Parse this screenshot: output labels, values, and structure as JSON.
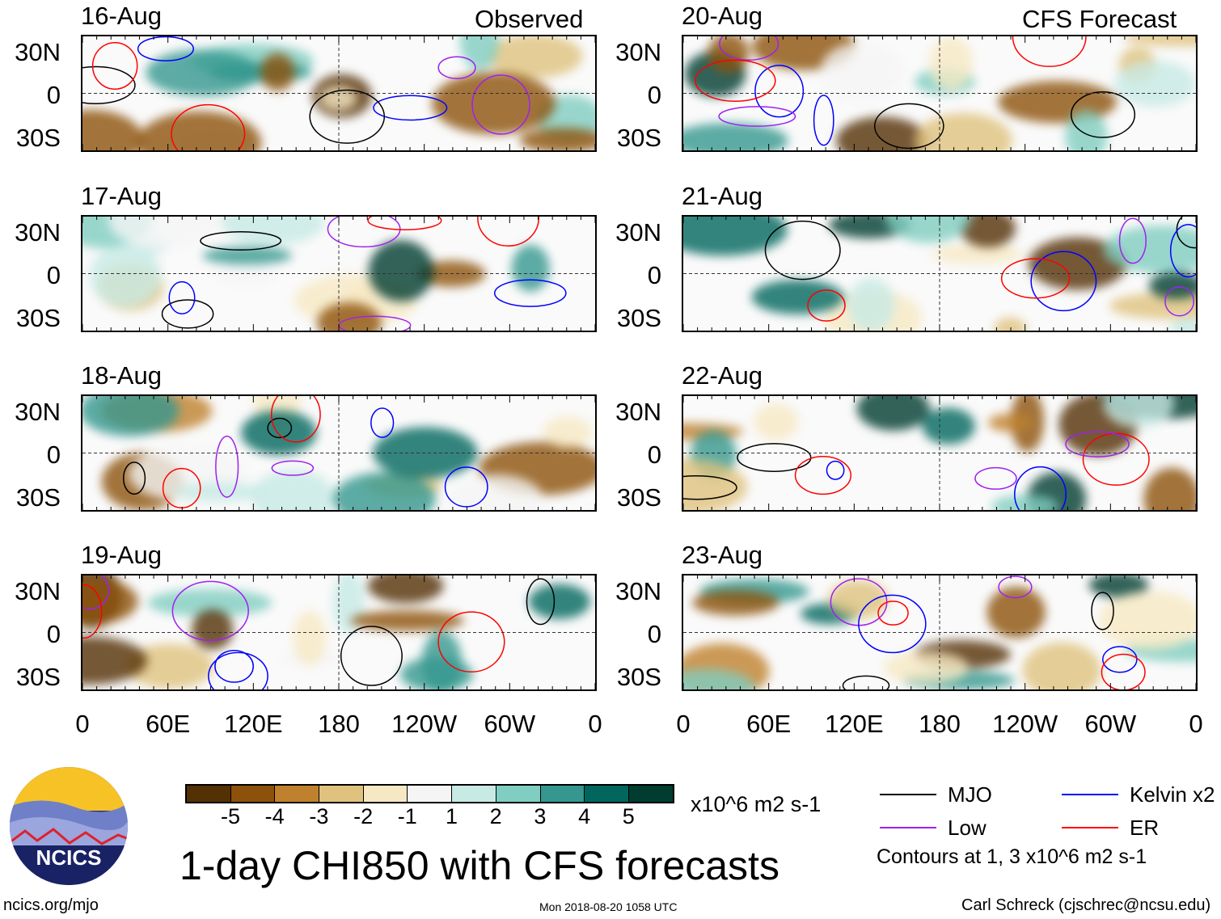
{
  "headers": {
    "observed": "Observed",
    "forecast": "CFS Forecast"
  },
  "panels": {
    "left": [
      "16-Aug",
      "17-Aug",
      "18-Aug",
      "19-Aug"
    ],
    "right": [
      "20-Aug",
      "21-Aug",
      "22-Aug",
      "23-Aug"
    ]
  },
  "lat_labels": [
    "30N",
    "0",
    "30S"
  ],
  "lon_labels": [
    "0",
    "60E",
    "120E",
    "180",
    "120W",
    "60W",
    "0"
  ],
  "colorbar": {
    "colors": [
      "#543005",
      "#8c510a",
      "#bf812d",
      "#dfc27d",
      "#f6e8c3",
      "#f5f5f5",
      "#c7eae5",
      "#80cdc1",
      "#35978f",
      "#01665e",
      "#003c30"
    ],
    "labels": [
      "-5",
      "-4",
      "-3",
      "-2",
      "-1",
      "1",
      "2",
      "3",
      "4",
      "5"
    ],
    "units": "x10^6 m2 s-1"
  },
  "title": "1-day CHI850 with CFS forecasts",
  "legend": {
    "items": [
      {
        "label": "MJO",
        "color": "#000000"
      },
      {
        "label": "Kelvin x2",
        "color": "#0000ff"
      },
      {
        "label": "Low",
        "color": "#a020f0"
      },
      {
        "label": "ER",
        "color": "#ff0000"
      }
    ],
    "note": "Contours at 1, 3 x10^6 m2 s-1"
  },
  "logo": {
    "text": "NCICS"
  },
  "footer": {
    "url": "ncics.org/mjo",
    "timestamp": "Mon 2018-08-20 1058 UTC",
    "credit": "Carl Schreck (cjschrec@ncsu.edu)"
  }
}
